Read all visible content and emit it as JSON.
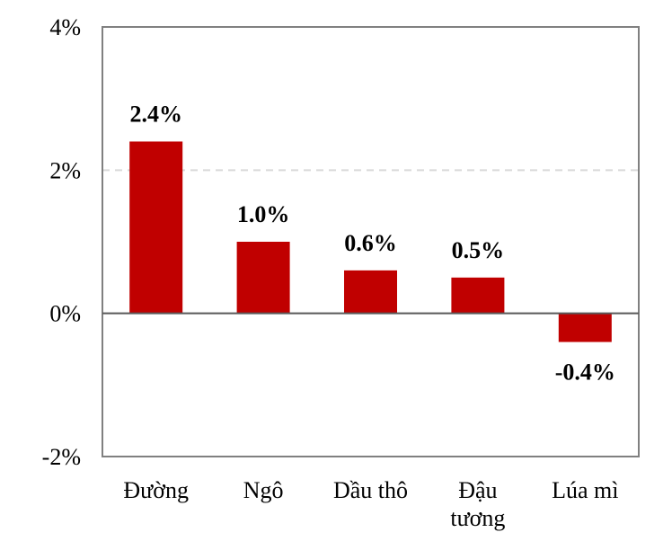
{
  "chart_data": {
    "type": "bar",
    "categories": [
      "Đường",
      "Ngô",
      "Dầu thô",
      "Đậu tương",
      "Lúa mì"
    ],
    "category_lines": [
      [
        "Đường"
      ],
      [
        "Ngô"
      ],
      [
        "Dầu thô"
      ],
      [
        "Đậu",
        "tương"
      ],
      [
        "Lúa mì"
      ]
    ],
    "values": [
      2.4,
      1.0,
      0.6,
      0.5,
      -0.4
    ],
    "data_labels": [
      "2.4%",
      "1.0%",
      "0.6%",
      "0.5%",
      "-0.4%"
    ],
    "ylim": [
      -2,
      4
    ],
    "yticks": [
      4,
      2,
      0,
      -2
    ],
    "ytick_labels": [
      "4%",
      "2%",
      "0%",
      "-2%"
    ],
    "grid": "dashed gridline at 2%",
    "legend": "none",
    "colors": {
      "bar": "#c00000",
      "gridline": "#d9d9d9",
      "axis": "#808080",
      "zero_line": "#595959"
    }
  }
}
